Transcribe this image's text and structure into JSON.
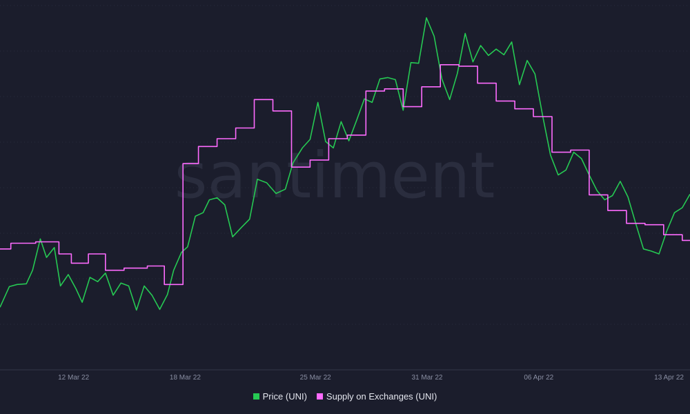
{
  "watermark": "santiment",
  "colors": {
    "background": "#1b1d2c",
    "grid": "#2a2d3e",
    "axis": "#33364a",
    "tick_text": "#8a8fa3",
    "legend_text": "#e4e6ee"
  },
  "chart_data": {
    "type": "line",
    "x_ticks": [
      "12 Mar 22",
      "18 Mar 22",
      "25 Mar 22",
      "31 Mar 22",
      "06 Apr 22",
      "13 Apr 22"
    ],
    "x_range": [
      "2022-03-08T10:00",
      "2022-04-14T12:00"
    ],
    "grid": "horizontal",
    "legend_position": "bottom",
    "series": [
      {
        "name": "Price (UNI)",
        "color": "#26c953",
        "render": "line",
        "points": [
          [
            "2022-03-08T10:00",
            25.8
          ],
          [
            "2022-03-08T22:00",
            28.7
          ],
          [
            "2022-03-09T08:00",
            29.0
          ],
          [
            "2022-03-09T20:00",
            29.1
          ],
          [
            "2022-03-10T04:00",
            31.0
          ],
          [
            "2022-03-10T14:00",
            35.4
          ],
          [
            "2022-03-10T22:00",
            32.8
          ],
          [
            "2022-03-11T08:00",
            34.2
          ],
          [
            "2022-03-11T16:00",
            28.8
          ],
          [
            "2022-03-12T02:00",
            30.4
          ],
          [
            "2022-03-12T12:00",
            28.4
          ],
          [
            "2022-03-12T20:00",
            26.5
          ],
          [
            "2022-03-13T06:00",
            30.0
          ],
          [
            "2022-03-13T16:00",
            29.4
          ],
          [
            "2022-03-14T02:00",
            30.6
          ],
          [
            "2022-03-14T12:00",
            27.5
          ],
          [
            "2022-03-14T22:00",
            29.2
          ],
          [
            "2022-03-15T08:00",
            28.8
          ],
          [
            "2022-03-15T18:00",
            25.4
          ],
          [
            "2022-03-16T04:00",
            28.8
          ],
          [
            "2022-03-16T14:00",
            27.5
          ],
          [
            "2022-03-17T00:00",
            25.5
          ],
          [
            "2022-03-17T10:00",
            27.6
          ],
          [
            "2022-03-17T18:00",
            31.0
          ],
          [
            "2022-03-18T04:00",
            33.5
          ],
          [
            "2022-03-18T12:00",
            34.3
          ],
          [
            "2022-03-18T22:00",
            38.6
          ],
          [
            "2022-03-19T08:00",
            39.1
          ],
          [
            "2022-03-19T16:00",
            40.9
          ],
          [
            "2022-03-20T02:00",
            41.2
          ],
          [
            "2022-03-20T12:00",
            40.2
          ],
          [
            "2022-03-20T22:00",
            35.7
          ],
          [
            "2022-03-21T10:00",
            37.1
          ],
          [
            "2022-03-21T20:00",
            38.2
          ],
          [
            "2022-03-22T06:00",
            43.8
          ],
          [
            "2022-03-22T18:00",
            43.3
          ],
          [
            "2022-03-23T06:00",
            41.8
          ],
          [
            "2022-03-23T18:00",
            42.4
          ],
          [
            "2022-03-24T04:00",
            46.1
          ],
          [
            "2022-03-24T16:00",
            48.2
          ],
          [
            "2022-03-25T02:00",
            49.4
          ],
          [
            "2022-03-25T12:00",
            54.6
          ],
          [
            "2022-03-25T22:00",
            49.1
          ],
          [
            "2022-03-26T08:00",
            48.2
          ],
          [
            "2022-03-26T18:00",
            51.9
          ],
          [
            "2022-03-27T04:00",
            49.2
          ],
          [
            "2022-03-27T14:00",
            52.1
          ],
          [
            "2022-03-28T00:00",
            55.1
          ],
          [
            "2022-03-28T10:00",
            54.6
          ],
          [
            "2022-03-28T20:00",
            57.9
          ],
          [
            "2022-03-29T06:00",
            58.1
          ],
          [
            "2022-03-29T16:00",
            57.8
          ],
          [
            "2022-03-30T02:00",
            53.5
          ],
          [
            "2022-03-30T12:00",
            60.2
          ],
          [
            "2022-03-30T22:00",
            60.1
          ],
          [
            "2022-03-31T08:00",
            66.5
          ],
          [
            "2022-03-31T18:00",
            63.9
          ],
          [
            "2022-04-01T04:00",
            57.9
          ],
          [
            "2022-04-01T14:00",
            55.0
          ],
          [
            "2022-04-02T00:00",
            58.7
          ],
          [
            "2022-04-02T10:00",
            64.3
          ],
          [
            "2022-04-02T20:00",
            60.3
          ],
          [
            "2022-04-03T06:00",
            62.6
          ],
          [
            "2022-04-03T16:00",
            61.2
          ],
          [
            "2022-04-04T02:00",
            62.1
          ],
          [
            "2022-04-04T12:00",
            61.3
          ],
          [
            "2022-04-04T22:00",
            63.1
          ],
          [
            "2022-04-05T08:00",
            57.1
          ],
          [
            "2022-04-05T18:00",
            60.5
          ],
          [
            "2022-04-06T04:00",
            58.6
          ],
          [
            "2022-04-06T14:00",
            52.7
          ],
          [
            "2022-04-07T00:00",
            47.2
          ],
          [
            "2022-04-07T10:00",
            44.4
          ],
          [
            "2022-04-07T20:00",
            45.1
          ],
          [
            "2022-04-08T06:00",
            47.6
          ],
          [
            "2022-04-08T16:00",
            46.7
          ],
          [
            "2022-04-09T02:00",
            44.4
          ],
          [
            "2022-04-09T12:00",
            42.2
          ],
          [
            "2022-04-09T22:00",
            40.9
          ],
          [
            "2022-04-10T08:00",
            41.5
          ],
          [
            "2022-04-10T18:00",
            43.5
          ],
          [
            "2022-04-11T04:00",
            41.3
          ],
          [
            "2022-04-11T14:00",
            37.6
          ],
          [
            "2022-04-12T00:00",
            34.0
          ],
          [
            "2022-04-12T10:00",
            33.7
          ],
          [
            "2022-04-12T20:00",
            33.3
          ],
          [
            "2022-04-13T06:00",
            36.5
          ],
          [
            "2022-04-13T16:00",
            39.1
          ],
          [
            "2022-04-14T02:00",
            39.8
          ],
          [
            "2022-04-14T12:00",
            41.7
          ]
        ]
      },
      {
        "name": "Supply on Exchanges (UNI)",
        "color": "#ff6bff",
        "render": "step",
        "points": [
          [
            "2022-03-08T10:00",
            34.0
          ],
          [
            "2022-03-09T00:00",
            34.0
          ],
          [
            "2022-03-09T00:00",
            34.8
          ],
          [
            "2022-03-10T08:00",
            34.8
          ],
          [
            "2022-03-10T08:00",
            35.0
          ],
          [
            "2022-03-11T14:00",
            35.0
          ],
          [
            "2022-03-11T14:00",
            33.3
          ],
          [
            "2022-03-12T06:00",
            33.3
          ],
          [
            "2022-03-12T06:00",
            32.0
          ],
          [
            "2022-03-13T04:00",
            32.0
          ],
          [
            "2022-03-13T04:00",
            33.3
          ],
          [
            "2022-03-14T02:00",
            33.3
          ],
          [
            "2022-03-14T02:00",
            31.0
          ],
          [
            "2022-03-15T02:00",
            31.0
          ],
          [
            "2022-03-15T02:00",
            31.3
          ],
          [
            "2022-03-16T08:00",
            31.3
          ],
          [
            "2022-03-16T08:00",
            31.6
          ],
          [
            "2022-03-17T06:00",
            31.6
          ],
          [
            "2022-03-17T06:00",
            29.0
          ],
          [
            "2022-03-18T06:00",
            29.0
          ],
          [
            "2022-03-18T06:00",
            46.0
          ],
          [
            "2022-03-19T02:00",
            46.0
          ],
          [
            "2022-03-19T02:00",
            48.4
          ],
          [
            "2022-03-20T02:00",
            48.4
          ],
          [
            "2022-03-20T02:00",
            49.5
          ],
          [
            "2022-03-21T02:00",
            49.5
          ],
          [
            "2022-03-21T02:00",
            51.0
          ],
          [
            "2022-03-22T02:00",
            51.0
          ],
          [
            "2022-03-22T02:00",
            55.0
          ],
          [
            "2022-03-23T02:00",
            55.0
          ],
          [
            "2022-03-23T02:00",
            53.4
          ],
          [
            "2022-03-24T02:00",
            53.4
          ],
          [
            "2022-03-24T02:00",
            45.5
          ],
          [
            "2022-03-25T02:00",
            45.5
          ],
          [
            "2022-03-25T02:00",
            46.5
          ],
          [
            "2022-03-26T02:00",
            46.5
          ],
          [
            "2022-03-26T02:00",
            49.5
          ],
          [
            "2022-03-27T02:00",
            49.5
          ],
          [
            "2022-03-27T02:00",
            50.0
          ],
          [
            "2022-03-28T02:00",
            50.0
          ],
          [
            "2022-03-28T02:00",
            56.2
          ],
          [
            "2022-03-29T02:00",
            56.2
          ],
          [
            "2022-03-29T02:00",
            56.5
          ],
          [
            "2022-03-30T02:00",
            56.5
          ],
          [
            "2022-03-30T02:00",
            54.0
          ],
          [
            "2022-03-31T02:00",
            54.0
          ],
          [
            "2022-03-31T02:00",
            56.8
          ],
          [
            "2022-04-01T02:00",
            56.8
          ],
          [
            "2022-04-01T02:00",
            59.9
          ],
          [
            "2022-04-02T02:00",
            59.9
          ],
          [
            "2022-04-02T02:00",
            59.7
          ],
          [
            "2022-04-03T02:00",
            59.7
          ],
          [
            "2022-04-03T02:00",
            57.3
          ],
          [
            "2022-04-04T02:00",
            57.3
          ],
          [
            "2022-04-04T02:00",
            54.8
          ],
          [
            "2022-04-05T02:00",
            54.8
          ],
          [
            "2022-04-05T02:00",
            53.7
          ],
          [
            "2022-04-06T02:00",
            53.7
          ],
          [
            "2022-04-06T02:00",
            52.6
          ],
          [
            "2022-04-07T02:00",
            52.6
          ],
          [
            "2022-04-07T02:00",
            47.6
          ],
          [
            "2022-04-08T02:00",
            47.6
          ],
          [
            "2022-04-08T02:00",
            47.9
          ],
          [
            "2022-04-09T02:00",
            47.9
          ],
          [
            "2022-04-09T02:00",
            41.6
          ],
          [
            "2022-04-10T02:00",
            41.6
          ],
          [
            "2022-04-10T02:00",
            39.4
          ],
          [
            "2022-04-11T02:00",
            39.4
          ],
          [
            "2022-04-11T02:00",
            37.6
          ],
          [
            "2022-04-12T02:00",
            37.6
          ],
          [
            "2022-04-12T02:00",
            37.4
          ],
          [
            "2022-04-13T02:00",
            37.4
          ],
          [
            "2022-04-13T02:00",
            36.0
          ],
          [
            "2022-04-14T02:00",
            36.0
          ],
          [
            "2022-04-14T02:00",
            35.2
          ],
          [
            "2022-04-14T12:00",
            35.2
          ]
        ]
      }
    ]
  }
}
